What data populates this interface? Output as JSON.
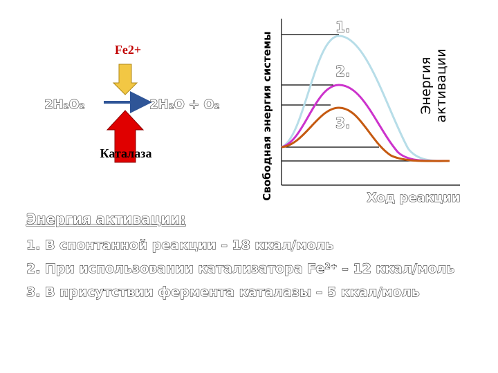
{
  "reaction": {
    "catalyst": "Fe2+",
    "reactant": "2H₂O₂",
    "products": "2H₂O + O₂",
    "enzyme": "Каталаза"
  },
  "energy_diagram": {
    "y_label": "Свободная энергия системы",
    "x_label": "Ход реакции",
    "curve_labels": [
      "1.",
      "2.",
      "3."
    ],
    "annotation": [
      "Энергия",
      "активации"
    ]
  },
  "text": {
    "heading": "Энергия активации:",
    "items": [
      "1. В спонтанной реакции – 18 ккал/моль",
      "2. При использовании катализатора Fe²⁺ – 12 ккал/моль",
      "3. В присутствии фермента каталазы – 5 ккал/моль"
    ]
  }
}
